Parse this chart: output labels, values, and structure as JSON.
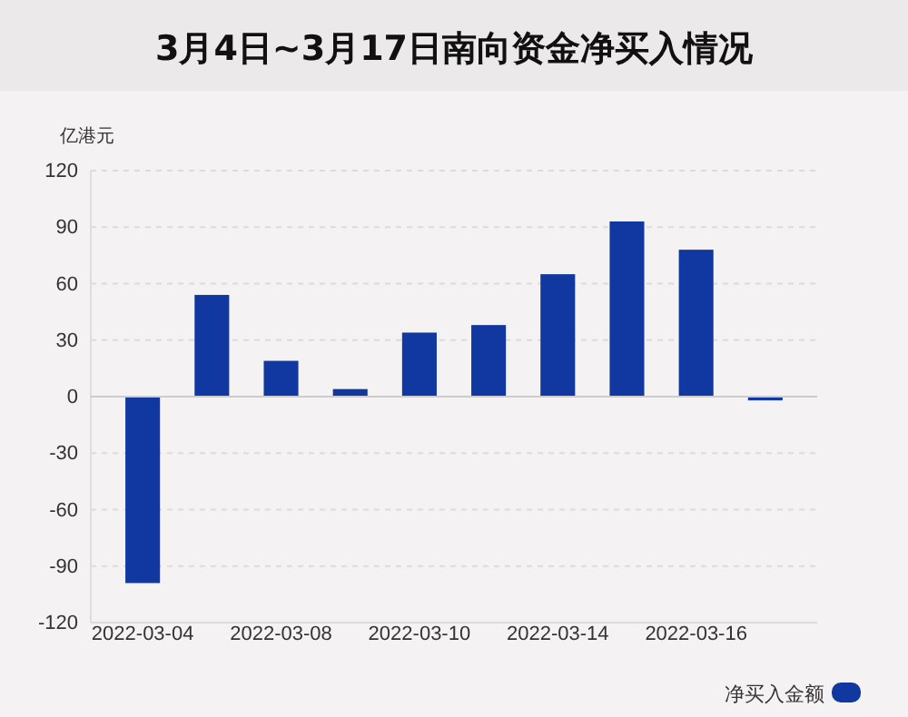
{
  "chart_data": {
    "type": "bar",
    "title": "3月4日~3月17日南向资金净买入情况",
    "ylabel": "亿港元",
    "categories": [
      "2022-03-04",
      null,
      "2022-03-08",
      null,
      "2022-03-10",
      null,
      "2022-03-14",
      null,
      "2022-03-16",
      null
    ],
    "series": [
      {
        "name": "净买入金额",
        "color": "#1038a0",
        "values": [
          -99,
          54,
          19,
          4,
          34,
          38,
          65,
          93,
          78,
          -2
        ]
      }
    ],
    "ylim": [
      -120,
      120
    ],
    "yticks": [
      -120,
      -90,
      -60,
      -30,
      0,
      30,
      60,
      90,
      120
    ],
    "grid": "y",
    "legend": "bottom right"
  }
}
